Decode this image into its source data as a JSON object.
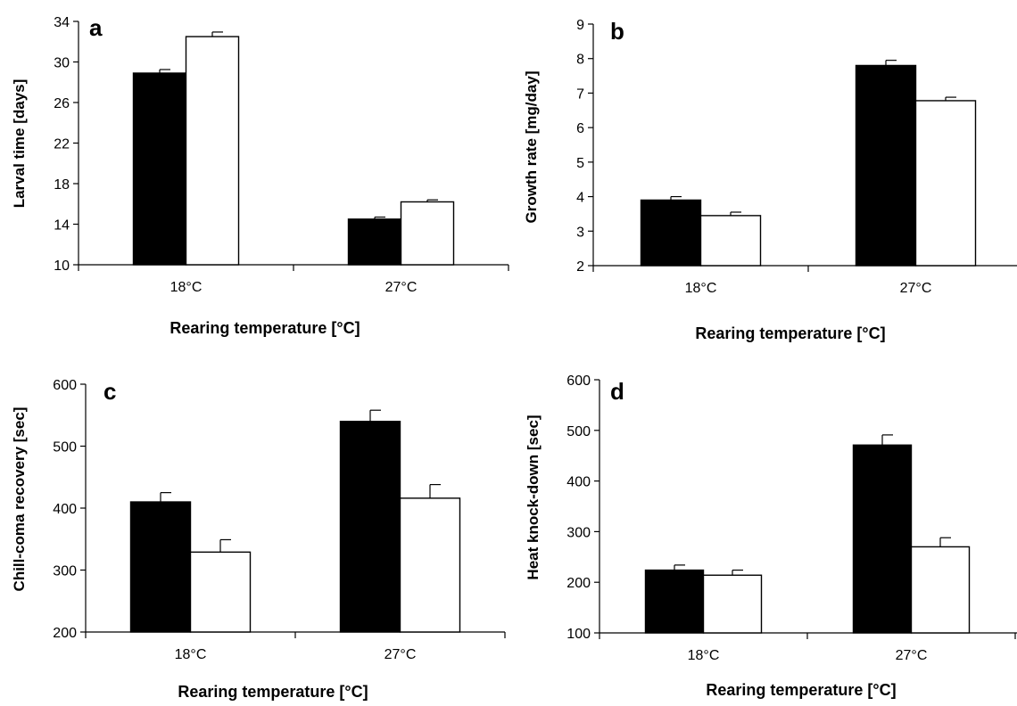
{
  "chart_data": [
    {
      "type": "bar",
      "panel_label": "a",
      "ylabel": "Larval time [days]",
      "xlabel": "Rearing temperature [°C]",
      "categories": [
        "18°C",
        "27°C"
      ],
      "ylim": [
        10,
        34
      ],
      "yticks": [
        10,
        14,
        18,
        22,
        26,
        30,
        34
      ],
      "series": [
        {
          "color": "#000000",
          "values": [
            28.9,
            14.5
          ],
          "errors": [
            0.35,
            0.2
          ]
        },
        {
          "color": "#ffffff",
          "values": [
            32.5,
            16.2
          ],
          "errors": [
            0.45,
            0.2
          ]
        }
      ]
    },
    {
      "type": "bar",
      "panel_label": "b",
      "ylabel": "Growth rate [mg/day]",
      "xlabel": "Rearing temperature [°C]",
      "categories": [
        "18°C",
        "27°C"
      ],
      "ylim": [
        2,
        9
      ],
      "yticks": [
        2,
        3,
        4,
        5,
        6,
        7,
        8,
        9
      ],
      "series": [
        {
          "color": "#000000",
          "values": [
            3.9,
            7.8
          ],
          "errors": [
            0.1,
            0.15
          ]
        },
        {
          "color": "#ffffff",
          "values": [
            3.45,
            6.78
          ],
          "errors": [
            0.1,
            0.1
          ]
        }
      ]
    },
    {
      "type": "bar",
      "panel_label": "c",
      "ylabel": "Chill-coma recovery [sec]",
      "xlabel": "Rearing temperature [°C]",
      "categories": [
        "18°C",
        "27°C"
      ],
      "ylim": [
        200,
        600
      ],
      "yticks": [
        200,
        300,
        400,
        500,
        600
      ],
      "series": [
        {
          "color": "#000000",
          "values": [
            410,
            540
          ],
          "errors": [
            15,
            18
          ]
        },
        {
          "color": "#ffffff",
          "values": [
            329,
            416
          ],
          "errors": [
            20,
            22
          ]
        }
      ]
    },
    {
      "type": "bar",
      "panel_label": "d",
      "ylabel": "Heat knock-down [sec]",
      "xlabel": "Rearing temperature [°C]",
      "categories": [
        "18°C",
        "27°C"
      ],
      "ylim": [
        100,
        600
      ],
      "yticks": [
        100,
        200,
        300,
        400,
        500,
        600
      ],
      "series": [
        {
          "color": "#000000",
          "values": [
            224,
            471
          ],
          "errors": [
            10,
            20
          ]
        },
        {
          "color": "#ffffff",
          "values": [
            214,
            270
          ],
          "errors": [
            10,
            18
          ]
        }
      ]
    }
  ]
}
